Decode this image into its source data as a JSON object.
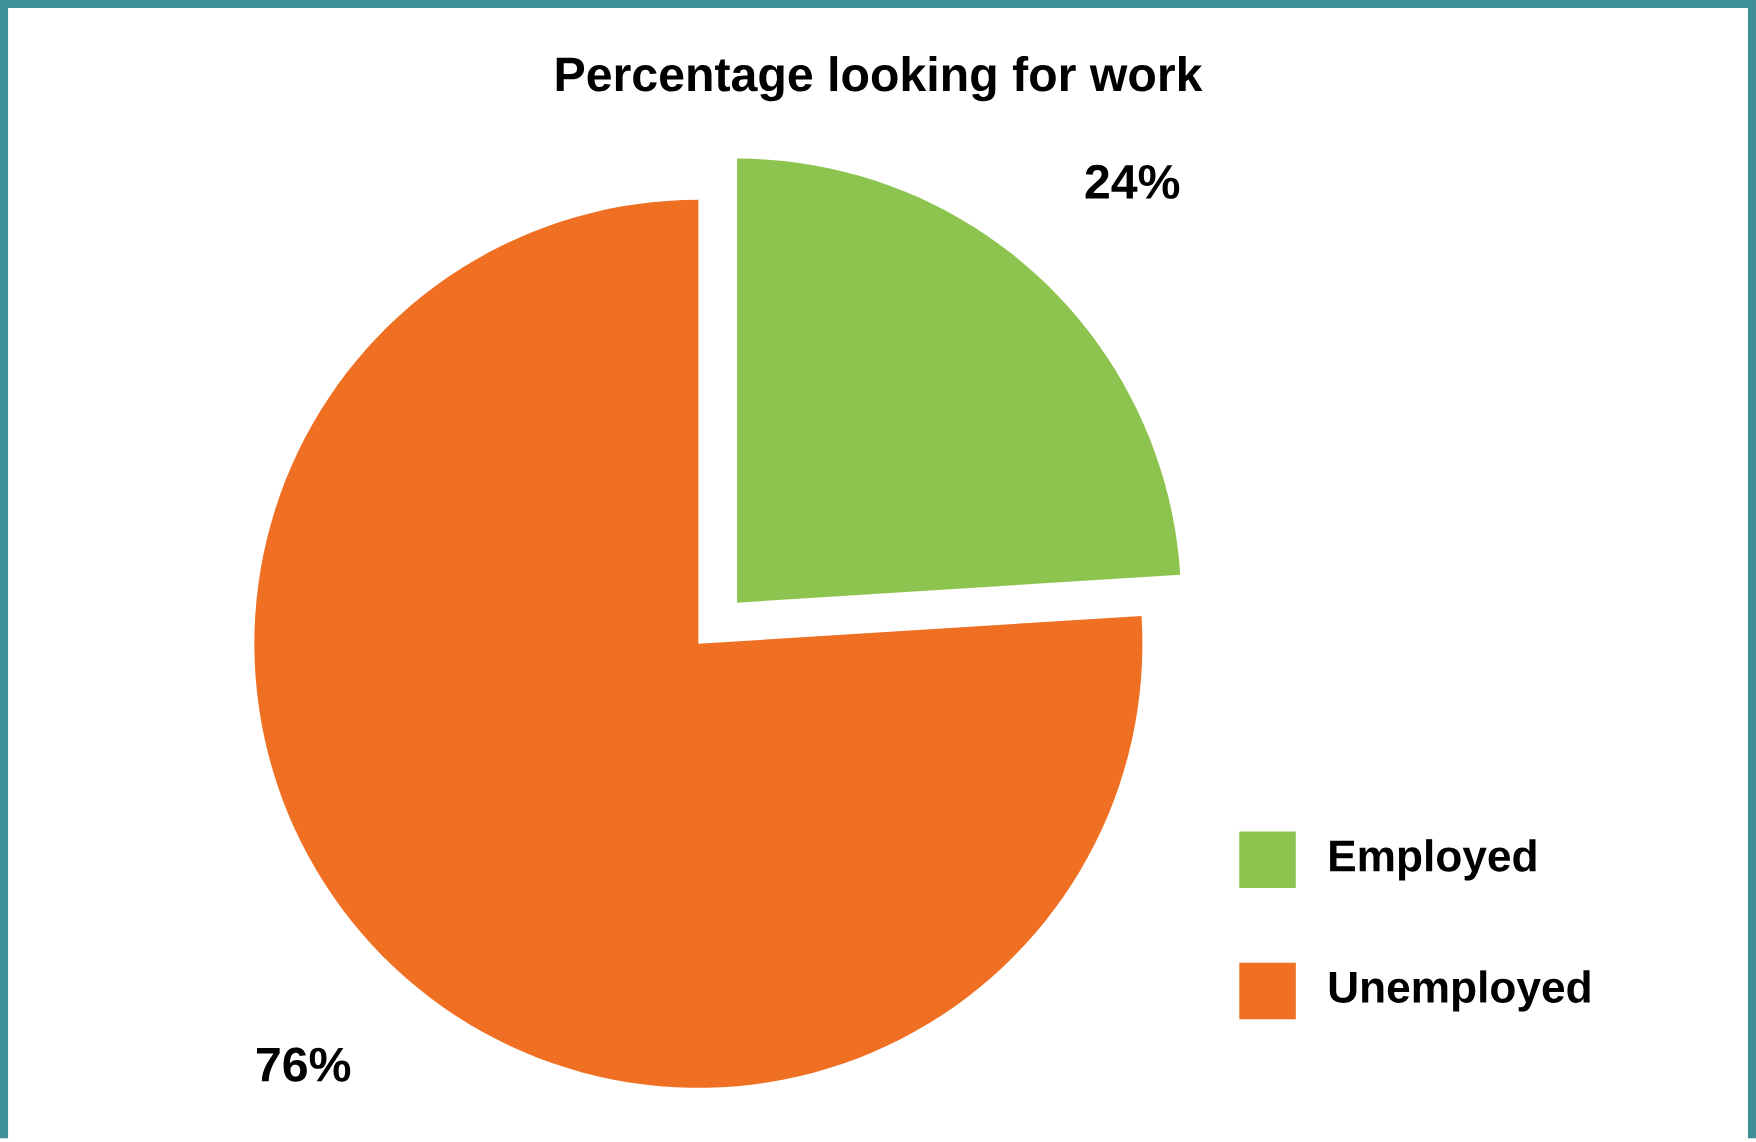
{
  "chart_data": {
    "type": "pie",
    "title": "Percentage looking for work",
    "categories": [
      "Employed",
      "Unemployed"
    ],
    "values": [
      24,
      76
    ],
    "colors": [
      "#8dc450",
      "#f07023"
    ],
    "value_labels": [
      "24%",
      "76%"
    ],
    "legend": "bottom right"
  }
}
